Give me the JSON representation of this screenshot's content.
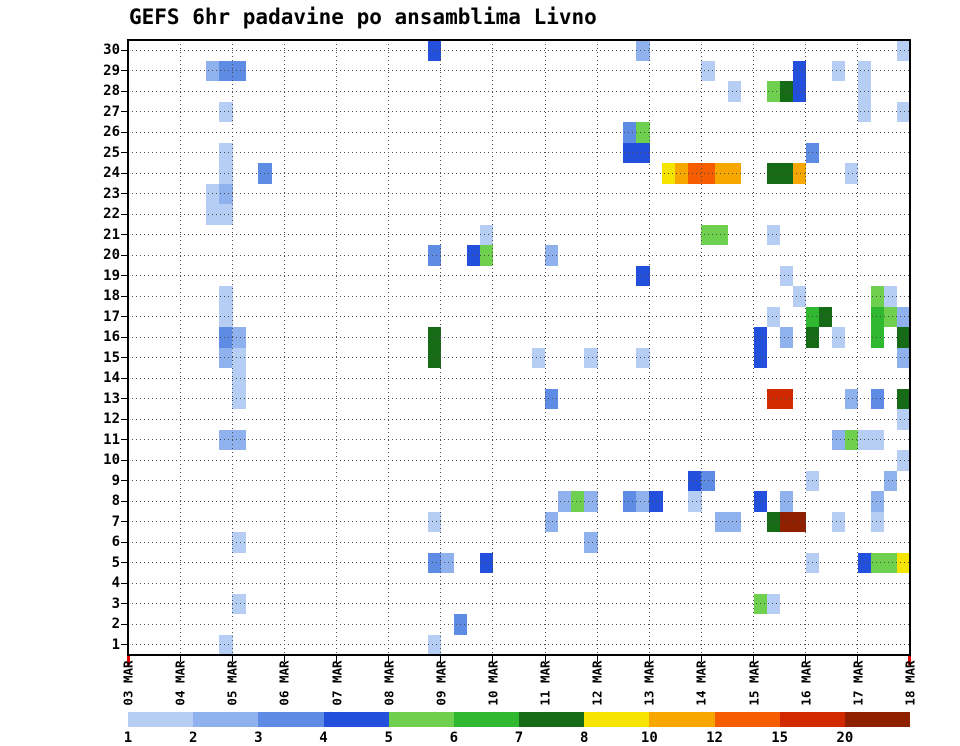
{
  "title": "GEFS 6hr padavine po ansamblima Livno",
  "chart_data": {
    "type": "heatmap",
    "title": "GEFS 6hr padavine po ansamblima Livno",
    "xlabel": "",
    "ylabel": "",
    "grid": true,
    "legend_position": "bottom",
    "x_tick_labels": [
      "03 MAR",
      "04 MAR",
      "05 MAR",
      "06 MAR",
      "07 MAR",
      "08 MAR",
      "09 MAR",
      "10 MAR",
      "11 MAR",
      "12 MAR",
      "13 MAR",
      "14 MAR",
      "15 MAR",
      "16 MAR",
      "17 MAR",
      "18 MAR"
    ],
    "steps_per_day": 4,
    "y_tick_labels": [
      1,
      2,
      3,
      4,
      5,
      6,
      7,
      8,
      9,
      10,
      11,
      12,
      13,
      14,
      15,
      16,
      17,
      18,
      19,
      20,
      21,
      22,
      23,
      24,
      25,
      26,
      27,
      28,
      29,
      30
    ],
    "levels": [
      1,
      2,
      3,
      4,
      5,
      6,
      7,
      8,
      10,
      12,
      15,
      20
    ],
    "level_colors": {
      "1": "#b6cdf4",
      "2": "#8fb1ee",
      "3": "#5e8be4",
      "4": "#2250dd",
      "5": "#6fd050",
      "6": "#30b830",
      "7": "#166b16",
      "8": "#f5e400",
      "10": "#f7a800",
      "12": "#f55d00",
      "15": "#d22a00",
      "20": "#8f2000"
    },
    "cell_format": [
      "member",
      "col_6hr_from_03MAR_00Z",
      "level"
    ],
    "cells": [
      [
        30,
        23,
        4
      ],
      [
        30,
        39,
        2
      ],
      [
        30,
        59,
        1
      ],
      [
        29,
        6,
        2
      ],
      [
        29,
        7,
        3
      ],
      [
        29,
        8,
        3
      ],
      [
        29,
        44,
        1
      ],
      [
        29,
        51,
        4
      ],
      [
        29,
        54,
        1
      ],
      [
        29,
        56,
        1
      ],
      [
        28,
        46,
        1
      ],
      [
        28,
        49,
        5
      ],
      [
        28,
        50,
        7
      ],
      [
        28,
        51,
        4
      ],
      [
        28,
        56,
        1
      ],
      [
        27,
        7,
        1
      ],
      [
        27,
        56,
        1
      ],
      [
        27,
        59,
        1
      ],
      [
        26,
        38,
        3
      ],
      [
        26,
        39,
        5
      ],
      [
        25,
        7,
        1
      ],
      [
        25,
        38,
        4
      ],
      [
        25,
        39,
        4
      ],
      [
        25,
        52,
        3
      ],
      [
        24,
        7,
        1
      ],
      [
        24,
        10,
        3
      ],
      [
        24,
        41,
        8
      ],
      [
        24,
        42,
        10
      ],
      [
        24,
        43,
        12
      ],
      [
        24,
        44,
        12
      ],
      [
        24,
        45,
        10
      ],
      [
        24,
        46,
        10
      ],
      [
        24,
        49,
        7
      ],
      [
        24,
        50,
        7
      ],
      [
        24,
        51,
        10
      ],
      [
        24,
        55,
        1
      ],
      [
        23,
        6,
        1
      ],
      [
        23,
        7,
        2
      ],
      [
        22,
        6,
        1
      ],
      [
        22,
        7,
        1
      ],
      [
        21,
        27,
        1
      ],
      [
        21,
        44,
        5
      ],
      [
        21,
        45,
        5
      ],
      [
        21,
        49,
        1
      ],
      [
        20,
        23,
        3
      ],
      [
        20,
        26,
        4
      ],
      [
        20,
        27,
        5
      ],
      [
        20,
        32,
        2
      ],
      [
        19,
        39,
        4
      ],
      [
        19,
        50,
        1
      ],
      [
        18,
        7,
        1
      ],
      [
        18,
        51,
        1
      ],
      [
        18,
        57,
        5
      ],
      [
        18,
        58,
        1
      ],
      [
        17,
        7,
        1
      ],
      [
        17,
        49,
        1
      ],
      [
        17,
        52,
        6
      ],
      [
        17,
        53,
        7
      ],
      [
        17,
        57,
        6
      ],
      [
        17,
        58,
        5
      ],
      [
        17,
        59,
        2
      ],
      [
        16,
        7,
        3
      ],
      [
        16,
        8,
        2
      ],
      [
        16,
        23,
        7
      ],
      [
        16,
        48,
        4
      ],
      [
        16,
        50,
        2
      ],
      [
        16,
        52,
        7
      ],
      [
        16,
        54,
        1
      ],
      [
        16,
        57,
        6
      ],
      [
        16,
        59,
        7
      ],
      [
        15,
        7,
        2
      ],
      [
        15,
        8,
        1
      ],
      [
        15,
        23,
        7
      ],
      [
        15,
        31,
        1
      ],
      [
        15,
        35,
        1
      ],
      [
        15,
        39,
        1
      ],
      [
        15,
        48,
        4
      ],
      [
        15,
        59,
        2
      ],
      [
        14,
        8,
        1
      ],
      [
        13,
        8,
        1
      ],
      [
        13,
        32,
        3
      ],
      [
        13,
        49,
        15
      ],
      [
        13,
        50,
        15
      ],
      [
        13,
        55,
        2
      ],
      [
        13,
        57,
        3
      ],
      [
        13,
        59,
        7
      ],
      [
        12,
        59,
        1
      ],
      [
        11,
        7,
        2
      ],
      [
        11,
        8,
        2
      ],
      [
        11,
        54,
        2
      ],
      [
        11,
        55,
        5
      ],
      [
        11,
        56,
        1
      ],
      [
        11,
        57,
        1
      ],
      [
        10,
        59,
        1
      ],
      [
        9,
        43,
        4
      ],
      [
        9,
        44,
        3
      ],
      [
        9,
        52,
        1
      ],
      [
        9,
        58,
        2
      ],
      [
        8,
        33,
        2
      ],
      [
        8,
        34,
        5
      ],
      [
        8,
        35,
        2
      ],
      [
        8,
        38,
        3
      ],
      [
        8,
        39,
        2
      ],
      [
        8,
        40,
        4
      ],
      [
        8,
        43,
        1
      ],
      [
        8,
        48,
        4
      ],
      [
        8,
        50,
        2
      ],
      [
        8,
        57,
        2
      ],
      [
        7,
        23,
        1
      ],
      [
        7,
        32,
        2
      ],
      [
        7,
        45,
        2
      ],
      [
        7,
        46,
        2
      ],
      [
        7,
        49,
        7
      ],
      [
        7,
        50,
        20
      ],
      [
        7,
        51,
        20
      ],
      [
        7,
        54,
        1
      ],
      [
        7,
        57,
        1
      ],
      [
        6,
        8,
        1
      ],
      [
        6,
        35,
        2
      ],
      [
        5,
        23,
        3
      ],
      [
        5,
        24,
        2
      ],
      [
        5,
        27,
        4
      ],
      [
        5,
        52,
        1
      ],
      [
        5,
        56,
        4
      ],
      [
        5,
        57,
        5
      ],
      [
        5,
        58,
        5
      ],
      [
        5,
        59,
        8
      ],
      [
        3,
        8,
        1
      ],
      [
        3,
        48,
        5
      ],
      [
        3,
        49,
        1
      ],
      [
        2,
        25,
        3
      ],
      [
        1,
        7,
        1
      ],
      [
        1,
        23,
        1
      ]
    ]
  },
  "colorbar": {
    "labels": [
      "1",
      "2",
      "3",
      "4",
      "5",
      "6",
      "7",
      "8",
      "10",
      "12",
      "15",
      "20"
    ]
  },
  "axis": {
    "tick_color": "#000000",
    "end_marker_color": "#e00000"
  }
}
